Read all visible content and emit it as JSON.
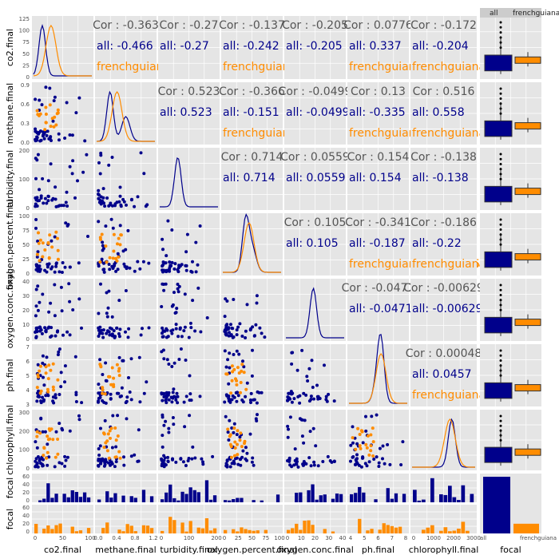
{
  "chart_data": {
    "type": "scatterplot-matrix",
    "title": "",
    "series_colors": {
      "all": "#00008B",
      "frenchguiana": "#FF8C00"
    },
    "variables": [
      "co2.final",
      "methane.final",
      "turbidity.final",
      "oxygen.percent.final",
      "oxygen.conc.final",
      "ph.final",
      "chlorophyll.final",
      "focal"
    ],
    "row_labels": [
      "co2.final",
      "methane.final",
      "turbidity.final",
      "oxygen.percent.final",
      "oxygen.conc.final",
      "ph.final",
      "chlorophyll.final",
      "focal",
      "focal"
    ],
    "x_tick_labels": [
      [
        "0",
        "50",
        "100"
      ],
      [
        "0.0",
        "0.4",
        "0.8",
        "1.2"
      ],
      [
        "0",
        "100",
        "200"
      ],
      [
        "0",
        "25",
        "50",
        "75",
        "100"
      ],
      [
        "0",
        "10",
        "20",
        "30",
        "40"
      ],
      [
        "4",
        "5",
        "6",
        "7",
        "8"
      ],
      [
        "0",
        "1000",
        "2000",
        "3000"
      ],
      [
        "all",
        "frenchguiana"
      ]
    ],
    "y_tick_labels": [
      [
        "0",
        "25",
        "50",
        "75",
        "100",
        "125"
      ],
      [
        "0.0",
        "0.3",
        "0.6",
        "0.9"
      ],
      [
        "0",
        "100",
        "200"
      ],
      [
        "0",
        "25",
        "50",
        "75",
        "100"
      ],
      [
        "0",
        "10",
        "20",
        "30",
        "40"
      ],
      [
        "3",
        "4",
        "5",
        "6",
        "7"
      ],
      [
        "0",
        "100",
        "200",
        "300"
      ],
      [
        "0",
        "20",
        "40",
        "60"
      ],
      [
        "0",
        "20",
        "40",
        "60"
      ]
    ],
    "box_strip_labels": [
      "all",
      "frenchguiana"
    ],
    "focal_counts": {
      "all": 70,
      "frenchguiana": 12
    },
    "correlations": [
      {
        "row": 0,
        "col": 1,
        "overall": "Cor : -0.363",
        "all": "all: -0.466",
        "fg": "frenchguiana: 0.539"
      },
      {
        "row": 0,
        "col": 2,
        "overall": "Cor : -0.27",
        "all": "all: -0.27",
        "fg": ""
      },
      {
        "row": 0,
        "col": 3,
        "overall": "Cor : -0.137",
        "all": "all: -0.242",
        "fg": "frenchguiana: 0.0679"
      },
      {
        "row": 0,
        "col": 4,
        "overall": "Cor : -0.205",
        "all": "all: -0.205",
        "fg": ""
      },
      {
        "row": 0,
        "col": 5,
        "overall": "Cor : 0.0776",
        "all": "all: 0.337",
        "fg": "frenchguiana: 0.311"
      },
      {
        "row": 0,
        "col": 6,
        "overall": "Cor : -0.172",
        "all": "all: -0.204",
        "fg": "frenchguiana: 0.0492"
      },
      {
        "row": 1,
        "col": 2,
        "overall": "Cor : 0.523",
        "all": "all: 0.523",
        "fg": ""
      },
      {
        "row": 1,
        "col": 3,
        "overall": "Cor : -0.366",
        "all": "all: -0.151",
        "fg": "frenchguiana: -0.33"
      },
      {
        "row": 1,
        "col": 4,
        "overall": "Cor : -0.0499",
        "all": "all: -0.0499",
        "fg": ""
      },
      {
        "row": 1,
        "col": 5,
        "overall": "Cor : 0.13",
        "all": "all: -0.335",
        "fg": "frenchguiana: 0.385"
      },
      {
        "row": 1,
        "col": 6,
        "overall": "Cor : 0.516",
        "all": "all: 0.558",
        "fg": "frenchguiana: 0.145"
      },
      {
        "row": 2,
        "col": 3,
        "overall": "Cor : 0.714",
        "all": "all: 0.714",
        "fg": ""
      },
      {
        "row": 2,
        "col": 4,
        "overall": "Cor : 0.0559",
        "all": "all: 0.0559",
        "fg": ""
      },
      {
        "row": 2,
        "col": 5,
        "overall": "Cor : 0.154",
        "all": "all: 0.154",
        "fg": ""
      },
      {
        "row": 2,
        "col": 6,
        "overall": "Cor : -0.138",
        "all": "all: -0.138",
        "fg": ""
      },
      {
        "row": 3,
        "col": 4,
        "overall": "Cor : 0.105",
        "all": "all: 0.105",
        "fg": ""
      },
      {
        "row": 3,
        "col": 5,
        "overall": "Cor : -0.341",
        "all": "all: -0.187",
        "fg": "frenchguiana: -0.00195"
      },
      {
        "row": 3,
        "col": 6,
        "overall": "Cor : -0.186",
        "all": "all: -0.22",
        "fg": "frenchguiana: -0.209"
      },
      {
        "row": 4,
        "col": 5,
        "overall": "Cor : -0.0471",
        "all": "all: -0.0471",
        "fg": ""
      },
      {
        "row": 4,
        "col": 6,
        "overall": "Cor : -0.00629",
        "all": "all: -0.00629",
        "fg": ""
      },
      {
        "row": 5,
        "col": 6,
        "overall": "Cor : 0.00048",
        "all": "all: 0.0457",
        "fg": "frenchguiana: -0.0125"
      }
    ],
    "legend": "none"
  }
}
